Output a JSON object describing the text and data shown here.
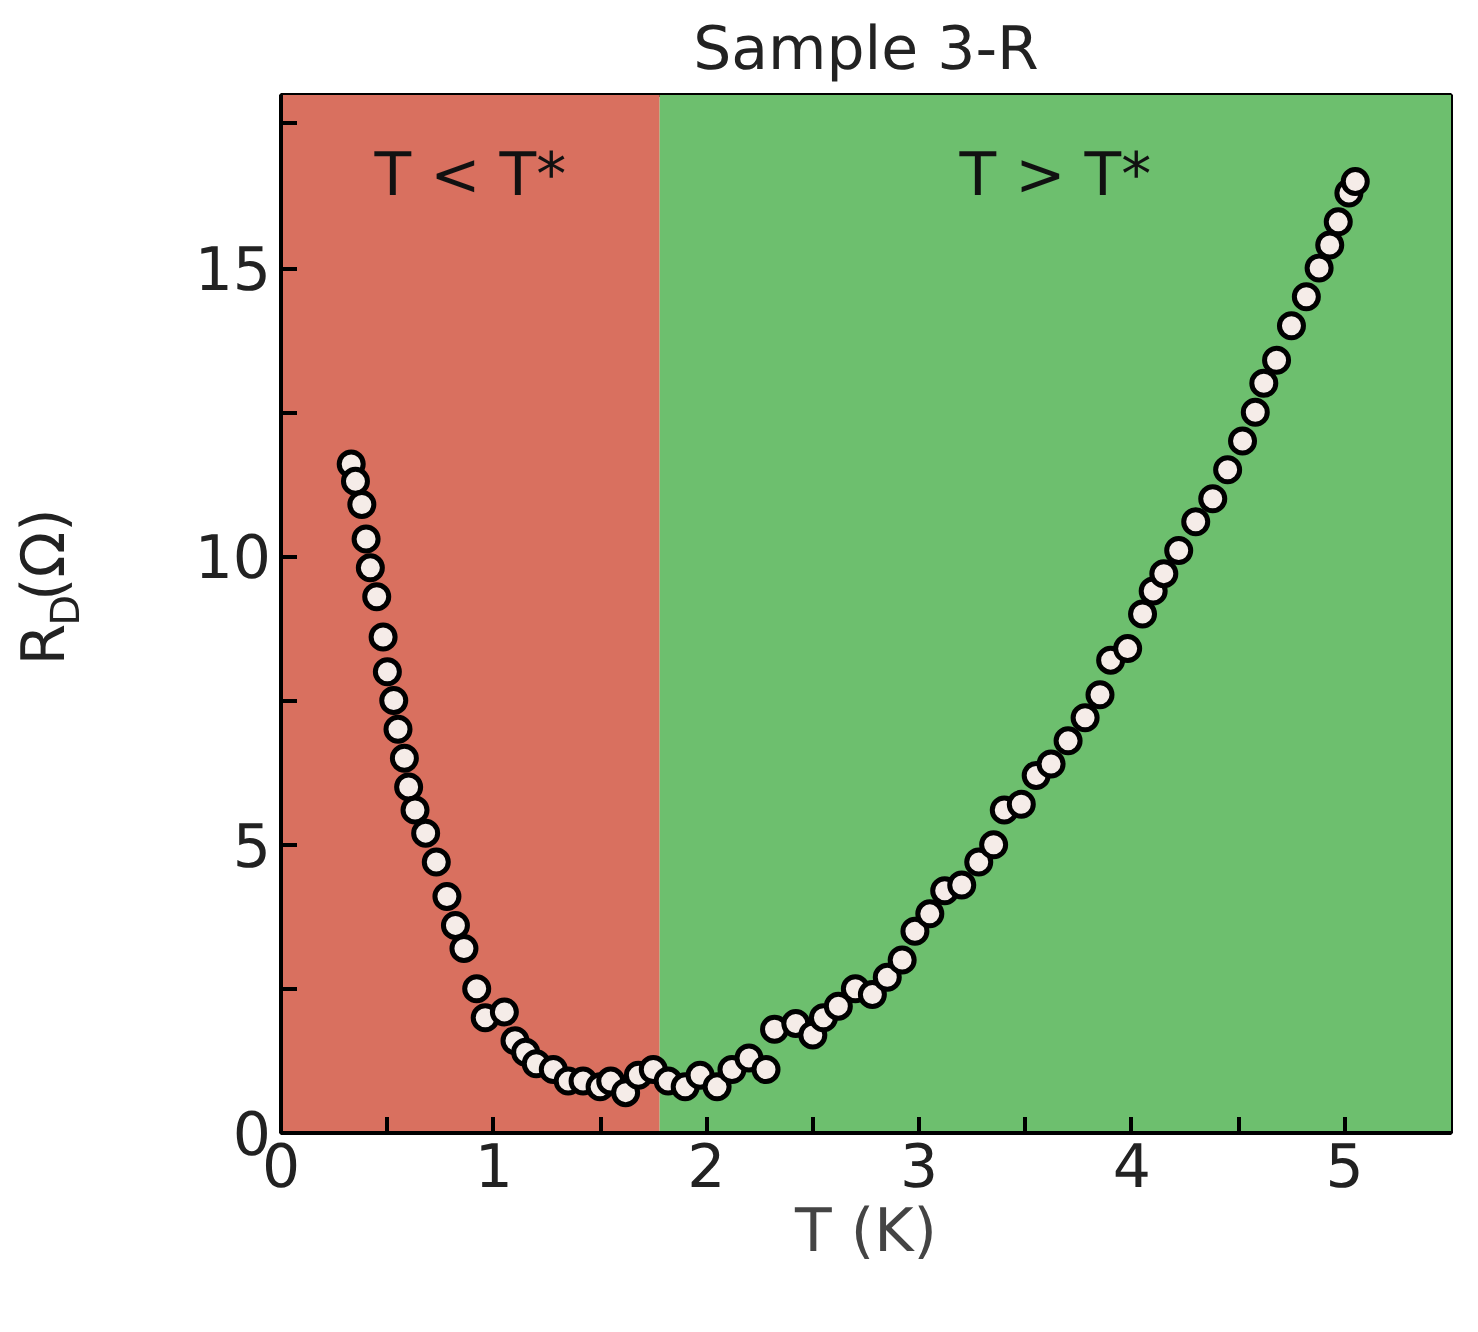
{
  "chart_data": {
    "type": "scatter",
    "title": "Sample 3-R",
    "xlabel": "T (K)",
    "ylabel": "R$_{D}$(Ω)",
    "xlim": [
      0,
      5.5
    ],
    "ylim": [
      0,
      18
    ],
    "xticks": [
      0,
      {
        "value": 0.5,
        "label": null
      },
      1,
      {
        "value": 1.5,
        "label": null
      },
      2,
      {
        "value": 2.5,
        "label": null
      },
      3,
      {
        "value": 3.5,
        "label": null
      },
      4,
      {
        "value": 4.5,
        "label": null
      },
      5
    ],
    "yticks": [
      0,
      {
        "value": 2.5,
        "label": null
      },
      5,
      {
        "value": 7.5,
        "label": null
      },
      10,
      {
        "value": 12.5,
        "label": null
      },
      15,
      {
        "value": 17.5,
        "label": null
      }
    ],
    "grid": false,
    "marker": "circle",
    "bands": [
      {
        "axis": "x",
        "from": 0,
        "to": 1.78,
        "label": "T < T*",
        "color": "#d9705f"
      },
      {
        "axis": "x",
        "from": 1.78,
        "to": 5.5,
        "label": "T > T*",
        "color": "#6dbf6e"
      }
    ],
    "series": [
      {
        "color": "#f5ece8",
        "x": [
          0.33,
          0.35,
          0.38,
          0.4,
          0.42,
          0.45,
          0.48,
          0.5,
          0.53,
          0.55,
          0.58,
          0.6,
          0.63,
          0.68,
          0.73,
          0.78,
          0.82,
          0.86,
          0.92,
          0.96,
          1.05,
          1.1,
          1.15,
          1.2,
          1.28,
          1.35,
          1.42,
          1.5,
          1.55,
          1.62,
          1.68,
          1.75,
          1.82,
          1.9,
          1.97,
          2.05,
          2.12,
          2.2,
          2.28,
          2.32,
          2.42,
          2.5,
          2.55,
          2.62,
          2.7,
          2.78,
          2.85,
          2.92,
          2.98,
          3.05,
          3.12,
          3.2,
          3.28,
          3.35,
          3.4,
          3.48,
          3.55,
          3.62,
          3.7,
          3.78,
          3.85,
          3.9,
          3.98,
          4.05,
          4.1,
          4.15,
          4.22,
          4.3,
          4.38,
          4.45,
          4.52,
          4.58,
          4.62,
          4.68,
          4.75,
          4.82,
          4.88,
          4.93,
          4.97,
          5.02,
          5.05
        ],
        "values": [
          11.6,
          11.3,
          10.9,
          10.3,
          9.8,
          9.3,
          8.6,
          8.0,
          7.5,
          7.0,
          6.5,
          6.0,
          5.6,
          5.2,
          4.7,
          4.1,
          3.6,
          3.2,
          2.5,
          2.0,
          2.1,
          1.6,
          1.4,
          1.2,
          1.1,
          0.9,
          0.9,
          0.8,
          0.9,
          0.7,
          1.0,
          1.1,
          0.9,
          0.8,
          1.0,
          0.8,
          1.1,
          1.3,
          1.1,
          1.8,
          1.9,
          1.7,
          2.0,
          2.2,
          2.5,
          2.4,
          2.7,
          3.0,
          3.5,
          3.8,
          4.2,
          4.3,
          4.7,
          5.0,
          5.6,
          5.7,
          6.2,
          6.4,
          6.8,
          7.2,
          7.6,
          8.2,
          8.4,
          9.0,
          9.4,
          9.7,
          10.1,
          10.6,
          11.0,
          11.5,
          12.0,
          12.5,
          13.0,
          13.4,
          14.0,
          14.5,
          15.0,
          15.4,
          15.8,
          16.3,
          16.5
        ]
      }
    ]
  }
}
